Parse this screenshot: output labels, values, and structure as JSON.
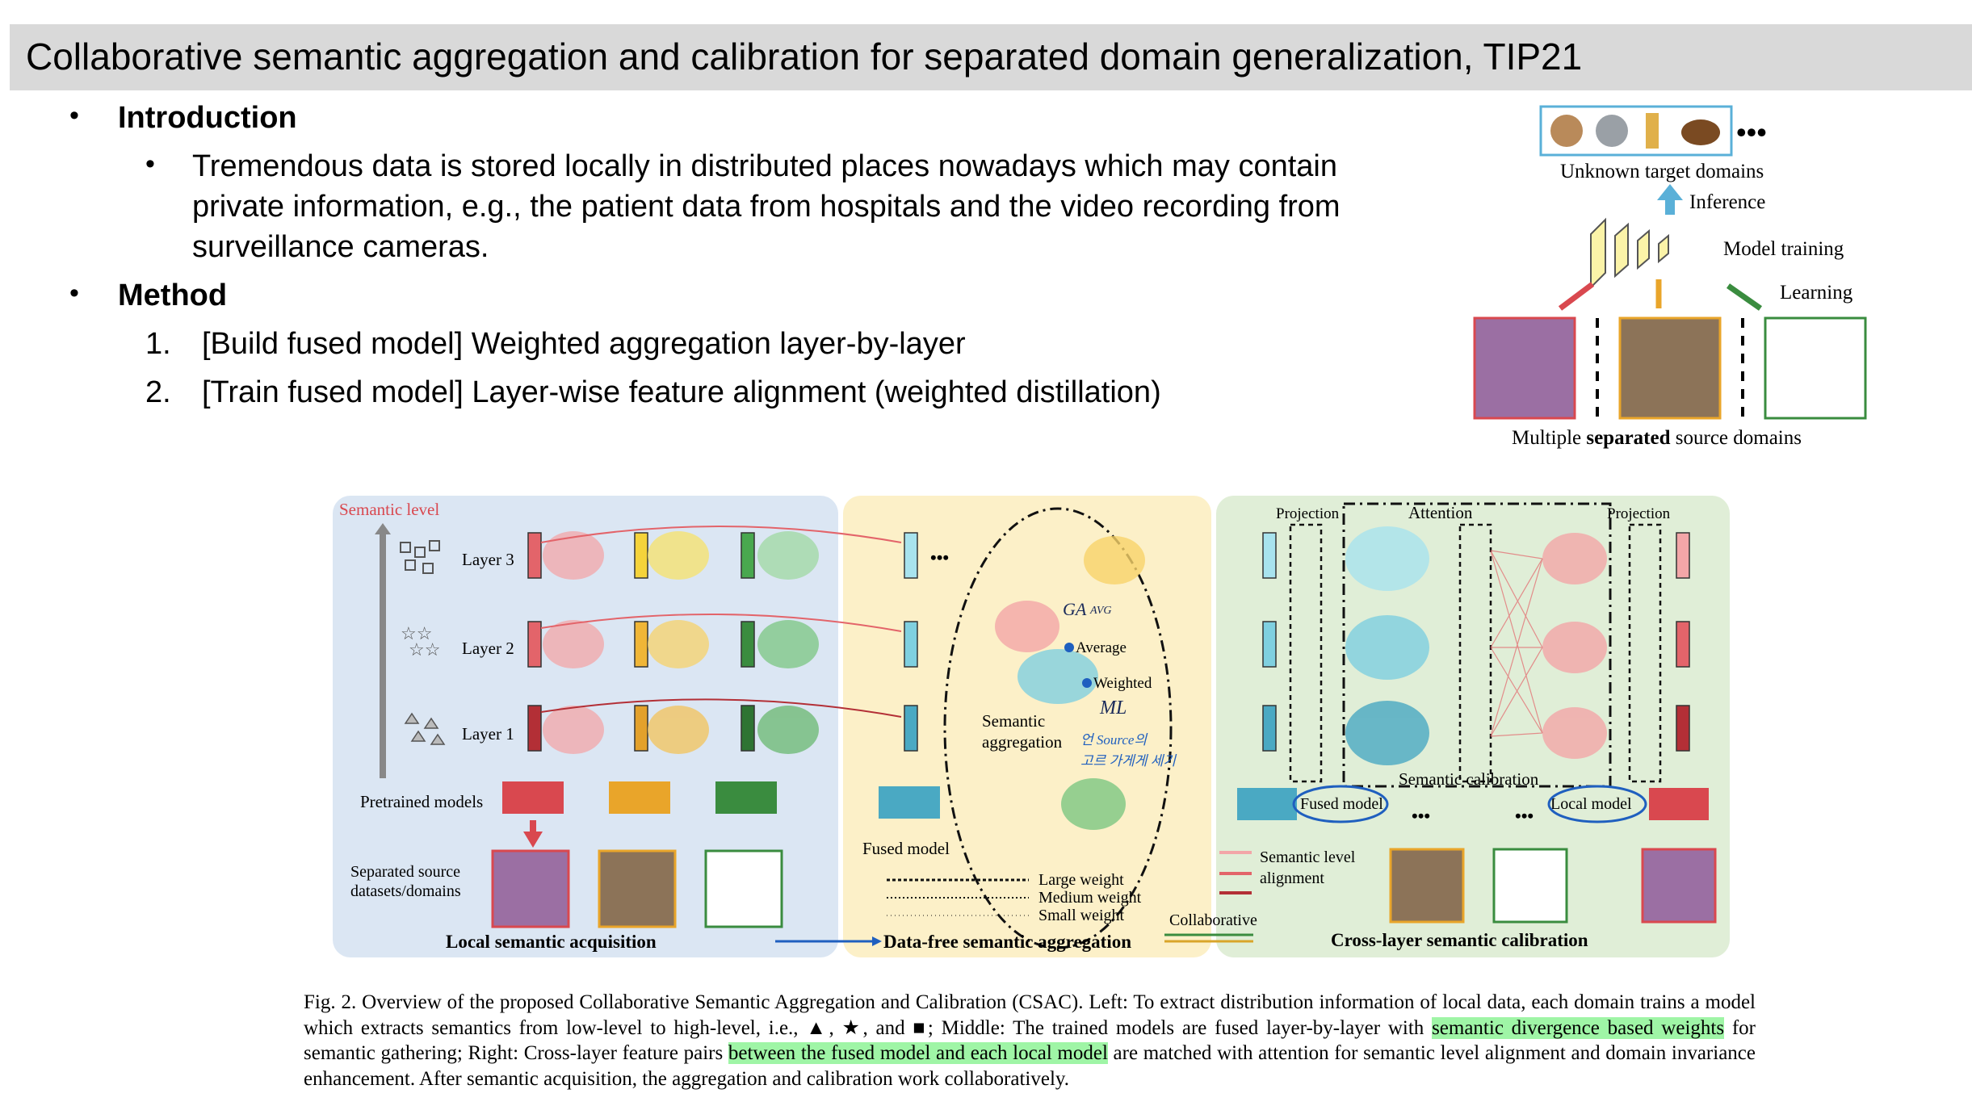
{
  "slide": {
    "title": "Collaborative semantic aggregation and calibration for separated domain generalization, TIP21",
    "bullets": {
      "intro_heading": "Introduction",
      "intro_text_1": "Tremendous data is stored locally in distributed places nowadays which may contain",
      "intro_text_2": "private information, e.g., the patient data from hospitals and the video recording from",
      "intro_text_3": "surveillance cameras.",
      "method_heading": "Method",
      "method_items": [
        {
          "num": "1.",
          "text": "[Build fused model] Weighted aggregation layer-by-layer"
        },
        {
          "num": "2.",
          "text": "[Train fused model] Layer-wise feature alignment (weighted distillation)"
        }
      ]
    }
  },
  "top_figure": {
    "unknown_target": "Unknown target domains",
    "inference": "Inference",
    "model_training": "Model training",
    "learning": "Learning",
    "ellipsis": "•••",
    "bottom_prefix": "Multiple ",
    "bottom_bold": "separated",
    "bottom_suffix": " source domains"
  },
  "main_figure": {
    "semantic_level": "Semantic level",
    "layer3": "Layer 3",
    "layer2": "Layer 2",
    "layer1": "Layer 1",
    "pretrained_models": "Pretrained models",
    "separated_source_1": "Separated source",
    "separated_source_2": "datasets/domains",
    "local_semantic_acquisition": "Local semantic acquisition",
    "fused_model": "Fused model",
    "average": "Average",
    "weighted": "Weighted",
    "semantic": "Semantic",
    "aggregation": "aggregation",
    "large_weight": "Large weight",
    "medium_weight": "Medium weight",
    "small_weight": "Small weight",
    "collaborative": "Collaborative",
    "data_free": "Data-free semantic aggregation",
    "projection_left": "Projection",
    "attention": "Attention",
    "projection_right": "Projection",
    "semantic_calibration": "Semantic calibration",
    "fused_model_right": "Fused model",
    "local_model": "Local model",
    "semantic_level_alignment_1": "Semantic level",
    "semantic_level_alignment_2": "alignment",
    "cross_layer": "Cross-layer semantic calibration",
    "handwriting_avg": "AVG",
    "handwriting_ga": "GA",
    "handwriting_ml": "ML",
    "handwriting_note_1": "언 Source의",
    "handwriting_note_2": "고르 가게게 세기",
    "dots": "•••"
  },
  "caption": {
    "p1": "Fig. 2.  Overview of the proposed Collaborative Semantic Aggregation and Calibration (CSAC). Left: To extract distribution information of local data, each domain trains a model which extracts semantics from low-level to high-level, i.e., ▲, ★, and ■; Middle: The trained models are fused layer-by-layer with ",
    "h1": "semantic divergence based weights",
    "p2": " for semantic gathering; Right: Cross-layer feature pairs ",
    "h2": "between the fused model and each local model",
    "p3": " are matched with attention for semantic level alignment and domain invariance enhancement. After semantic acquisition, the aggregation and calibration work collaboratively."
  },
  "colors": {
    "red": "#d9484f",
    "yellow": "#e9a52a",
    "green": "#3a8c3f",
    "cyan": "#7fd0e0",
    "left_panel": "#dbe6f3",
    "mid_panel": "#fcf0c8",
    "right_panel": "#e0eed7"
  }
}
